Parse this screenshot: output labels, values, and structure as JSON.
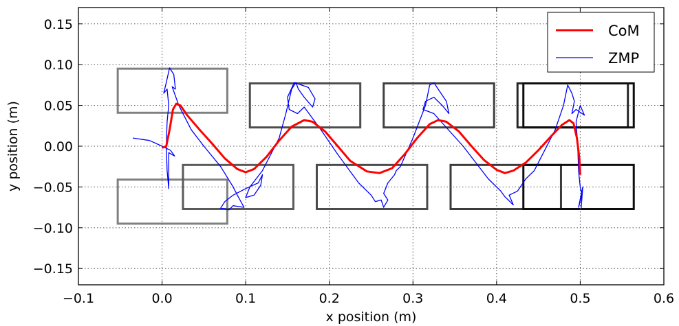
{
  "chart_data": {
    "type": "line",
    "title": "",
    "xlabel": "x position (m)",
    "ylabel": "y position (m)",
    "xlim": [
      -0.1,
      0.6
    ],
    "ylim": [
      -0.17,
      0.17
    ],
    "xticks": [
      -0.1,
      0.0,
      0.1,
      0.2,
      0.3,
      0.4,
      0.5,
      0.6
    ],
    "xtick_labels": [
      "−0.1",
      "0.0",
      "0.1",
      "0.2",
      "0.3",
      "0.4",
      "0.5",
      "0.6"
    ],
    "yticks": [
      0.15,
      0.1,
      0.05,
      0.0,
      -0.05,
      -0.1,
      -0.15
    ],
    "ytick_labels": [
      "0.15",
      "0.10",
      "0.05",
      "0.00",
      "−0.05",
      "−0.10",
      "−0.15"
    ],
    "grid": true,
    "legend_position": "top-right",
    "colors": {
      "com": "#ff0000",
      "zmp": "#0000ff",
      "axes": "#000000",
      "grid": "#555555"
    },
    "series": [
      {
        "name": "CoM",
        "color": "#ff0000",
        "points": [
          [
            0.0,
            -0.002
          ],
          [
            0.005,
            0.0
          ],
          [
            0.009,
            0.02
          ],
          [
            0.013,
            0.045
          ],
          [
            0.017,
            0.052
          ],
          [
            0.022,
            0.05
          ],
          [
            0.03,
            0.038
          ],
          [
            0.045,
            0.02
          ],
          [
            0.06,
            0.003
          ],
          [
            0.075,
            -0.015
          ],
          [
            0.09,
            -0.028
          ],
          [
            0.1,
            -0.032
          ],
          [
            0.11,
            -0.028
          ],
          [
            0.125,
            -0.013
          ],
          [
            0.14,
            0.007
          ],
          [
            0.155,
            0.024
          ],
          [
            0.17,
            0.032
          ],
          [
            0.18,
            0.03
          ],
          [
            0.195,
            0.018
          ],
          [
            0.21,
            0.0
          ],
          [
            0.225,
            -0.018
          ],
          [
            0.245,
            -0.031
          ],
          [
            0.26,
            -0.033
          ],
          [
            0.275,
            -0.027
          ],
          [
            0.29,
            -0.01
          ],
          [
            0.305,
            0.01
          ],
          [
            0.32,
            0.027
          ],
          [
            0.33,
            0.032
          ],
          [
            0.34,
            0.03
          ],
          [
            0.355,
            0.018
          ],
          [
            0.37,
            0.0
          ],
          [
            0.385,
            -0.017
          ],
          [
            0.4,
            -0.029
          ],
          [
            0.41,
            -0.033
          ],
          [
            0.42,
            -0.03
          ],
          [
            0.435,
            -0.02
          ],
          [
            0.45,
            -0.005
          ],
          [
            0.465,
            0.012
          ],
          [
            0.478,
            0.026
          ],
          [
            0.487,
            0.032
          ],
          [
            0.492,
            0.028
          ],
          [
            0.496,
            0.01
          ],
          [
            0.499,
            -0.015
          ],
          [
            0.5,
            -0.035
          ]
        ]
      },
      {
        "name": "ZMP",
        "color": "#0000ff",
        "points": [
          [
            -0.035,
            0.01
          ],
          [
            -0.015,
            0.007
          ],
          [
            0.0,
            0.0
          ],
          [
            0.01,
            -0.005
          ],
          [
            0.015,
            -0.012
          ],
          [
            0.008,
            -0.008
          ],
          [
            0.008,
            -0.052
          ],
          [
            0.006,
            -0.03
          ],
          [
            0.005,
            0.0
          ],
          [
            0.006,
            0.03
          ],
          [
            0.008,
            0.05
          ],
          [
            0.006,
            0.07
          ],
          [
            0.002,
            0.065
          ],
          [
            0.005,
            0.078
          ],
          [
            0.009,
            0.096
          ],
          [
            0.014,
            0.088
          ],
          [
            0.016,
            0.07
          ],
          [
            0.012,
            0.073
          ],
          [
            0.02,
            0.05
          ],
          [
            0.035,
            0.02
          ],
          [
            0.05,
            0.0
          ],
          [
            0.07,
            -0.025
          ],
          [
            0.085,
            -0.05
          ],
          [
            0.09,
            -0.06
          ],
          [
            0.098,
            -0.075
          ],
          [
            0.085,
            -0.073
          ],
          [
            0.08,
            -0.078
          ],
          [
            0.07,
            -0.076
          ],
          [
            0.075,
            -0.068
          ],
          [
            0.085,
            -0.06
          ],
          [
            0.1,
            -0.052
          ],
          [
            0.115,
            -0.045
          ],
          [
            0.12,
            -0.035
          ],
          [
            0.118,
            -0.048
          ],
          [
            0.11,
            -0.06
          ],
          [
            0.1,
            -0.063
          ],
          [
            0.105,
            -0.05
          ],
          [
            0.12,
            -0.03
          ],
          [
            0.13,
            -0.01
          ],
          [
            0.14,
            0.01
          ],
          [
            0.148,
            0.04
          ],
          [
            0.155,
            0.07
          ],
          [
            0.16,
            0.078
          ],
          [
            0.163,
            0.07
          ],
          [
            0.17,
            0.06
          ],
          [
            0.18,
            0.048
          ],
          [
            0.183,
            0.058
          ],
          [
            0.175,
            0.072
          ],
          [
            0.158,
            0.078
          ],
          [
            0.15,
            0.06
          ],
          [
            0.152,
            0.045
          ],
          [
            0.162,
            0.04
          ],
          [
            0.17,
            0.048
          ],
          [
            0.19,
            0.02
          ],
          [
            0.21,
            -0.01
          ],
          [
            0.235,
            -0.045
          ],
          [
            0.25,
            -0.06
          ],
          [
            0.255,
            -0.068
          ],
          [
            0.262,
            -0.066
          ],
          [
            0.265,
            -0.075
          ],
          [
            0.27,
            -0.066
          ],
          [
            0.265,
            -0.058
          ],
          [
            0.27,
            -0.045
          ],
          [
            0.278,
            -0.035
          ],
          [
            0.28,
            -0.03
          ],
          [
            0.285,
            -0.025
          ],
          [
            0.3,
            0.01
          ],
          [
            0.315,
            0.05
          ],
          [
            0.32,
            0.075
          ],
          [
            0.325,
            0.078
          ],
          [
            0.33,
            0.07
          ],
          [
            0.34,
            0.055
          ],
          [
            0.343,
            0.04
          ],
          [
            0.335,
            0.05
          ],
          [
            0.325,
            0.06
          ],
          [
            0.315,
            0.055
          ],
          [
            0.312,
            0.045
          ],
          [
            0.325,
            0.04
          ],
          [
            0.36,
            0.0
          ],
          [
            0.39,
            -0.04
          ],
          [
            0.405,
            -0.055
          ],
          [
            0.41,
            -0.062
          ],
          [
            0.42,
            -0.072
          ],
          [
            0.415,
            -0.06
          ],
          [
            0.425,
            -0.055
          ],
          [
            0.435,
            -0.04
          ],
          [
            0.445,
            -0.03
          ],
          [
            0.455,
            -0.01
          ],
          [
            0.47,
            0.02
          ],
          [
            0.48,
            0.05
          ],
          [
            0.485,
            0.075
          ],
          [
            0.49,
            0.065
          ],
          [
            0.493,
            0.055
          ],
          [
            0.49,
            0.04
          ],
          [
            0.495,
            0.045
          ],
          [
            0.505,
            0.038
          ],
          [
            0.5,
            0.05
          ],
          [
            0.495,
            0.03
          ],
          [
            0.497,
            0.0
          ],
          [
            0.498,
            -0.03
          ],
          [
            0.5,
            -0.05
          ],
          [
            0.502,
            -0.06
          ],
          [
            0.498,
            -0.075
          ],
          [
            0.5,
            -0.065
          ],
          [
            0.503,
            -0.05
          ],
          [
            0.501,
            -0.078
          ]
        ]
      }
    ],
    "footprints": [
      {
        "x": [
          -0.053,
          0.078
        ],
        "y": [
          0.041,
          0.095
        ],
        "color": "#808080"
      },
      {
        "x": [
          -0.053,
          0.078
        ],
        "y": [
          -0.095,
          -0.041
        ],
        "color": "#808080"
      },
      {
        "x": [
          0.025,
          0.157
        ],
        "y": [
          -0.077,
          -0.023
        ],
        "color": "#5a5a5a"
      },
      {
        "x": [
          0.105,
          0.237
        ],
        "y": [
          0.023,
          0.077
        ],
        "color": "#4d4d4d"
      },
      {
        "x": [
          0.185,
          0.317
        ],
        "y": [
          -0.077,
          -0.023
        ],
        "color": "#4a4a4a"
      },
      {
        "x": [
          0.265,
          0.397
        ],
        "y": [
          0.023,
          0.077
        ],
        "color": "#404040"
      },
      {
        "x": [
          0.345,
          0.477
        ],
        "y": [
          -0.077,
          -0.023
        ],
        "color": "#3a3a3a"
      },
      {
        "x": [
          0.425,
          0.557
        ],
        "y": [
          0.023,
          0.077
        ],
        "color": "#262626"
      },
      {
        "x": [
          0.432,
          0.564
        ],
        "y": [
          -0.077,
          -0.023
        ],
        "color": "#0d0d0d"
      },
      {
        "x": [
          0.432,
          0.564
        ],
        "y": [
          0.023,
          0.077
        ],
        "color": "#0d0d0d"
      }
    ]
  }
}
